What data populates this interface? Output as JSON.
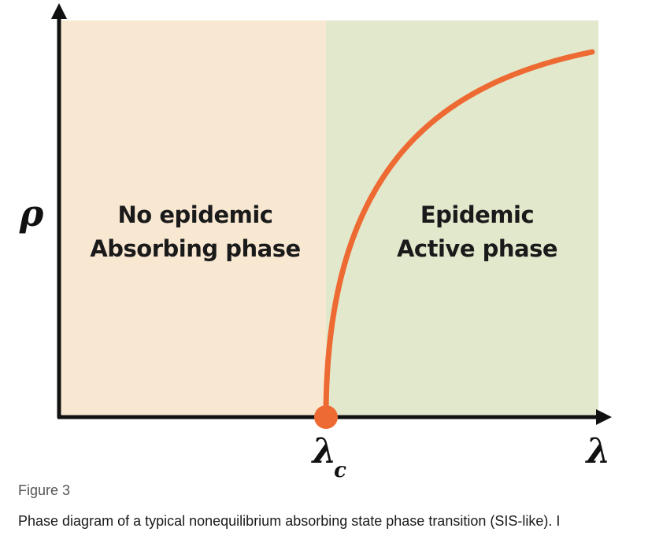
{
  "diagram": {
    "left_region": {
      "line1": "No epidemic",
      "line2": "Absorbing phase",
      "color": "#f8e8d2"
    },
    "right_region": {
      "line1": "Epidemic",
      "line2": "Active phase",
      "color": "#e2e8cc"
    },
    "y_axis_label": "ρ",
    "x_axis_label": "λ",
    "critical_point": {
      "symbol": "λ",
      "subscript": "c",
      "color": "#ee6a33"
    },
    "curve_color": "#ee6a33",
    "axis_color": "#111111"
  },
  "figure": {
    "label": "Figure 3",
    "caption": "Phase diagram of a typical nonequilibrium absorbing state phase transition (SIS-like). I"
  }
}
